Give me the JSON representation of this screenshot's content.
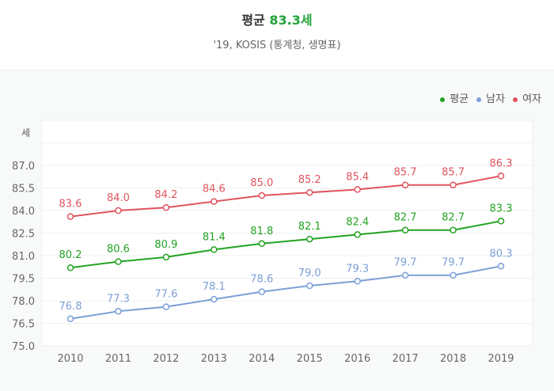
{
  "header": {
    "title_prefix": "평균",
    "title_value": "83.3세",
    "subtitle": "'19, KOSIS (통계청, 생명표)"
  },
  "chart_data": {
    "type": "line",
    "ylabel": "세",
    "ylim": [
      75.0,
      90.0
    ],
    "yticks": [
      "75.0",
      "76.5",
      "78.0",
      "79.5",
      "81.0",
      "82.5",
      "84.0",
      "85.5",
      "87.0"
    ],
    "x": [
      "2010",
      "2011",
      "2012",
      "2013",
      "2014",
      "2015",
      "2016",
      "2017",
      "2018",
      "2019"
    ],
    "grid": true,
    "legend_position": "top-right",
    "series": [
      {
        "name": "평균",
        "color": "#22a322",
        "values": [
          80.2,
          80.6,
          80.9,
          81.4,
          81.8,
          82.1,
          82.4,
          82.7,
          82.7,
          83.3
        ]
      },
      {
        "name": "남자",
        "color": "#7b9fd6",
        "values": [
          76.8,
          77.3,
          77.6,
          78.1,
          78.6,
          79.0,
          79.3,
          79.7,
          79.7,
          80.3
        ]
      },
      {
        "name": "여자",
        "color": "#e0535d",
        "values": [
          83.6,
          84.0,
          84.2,
          84.6,
          85.0,
          85.2,
          85.4,
          85.7,
          85.7,
          86.3
        ]
      }
    ]
  }
}
